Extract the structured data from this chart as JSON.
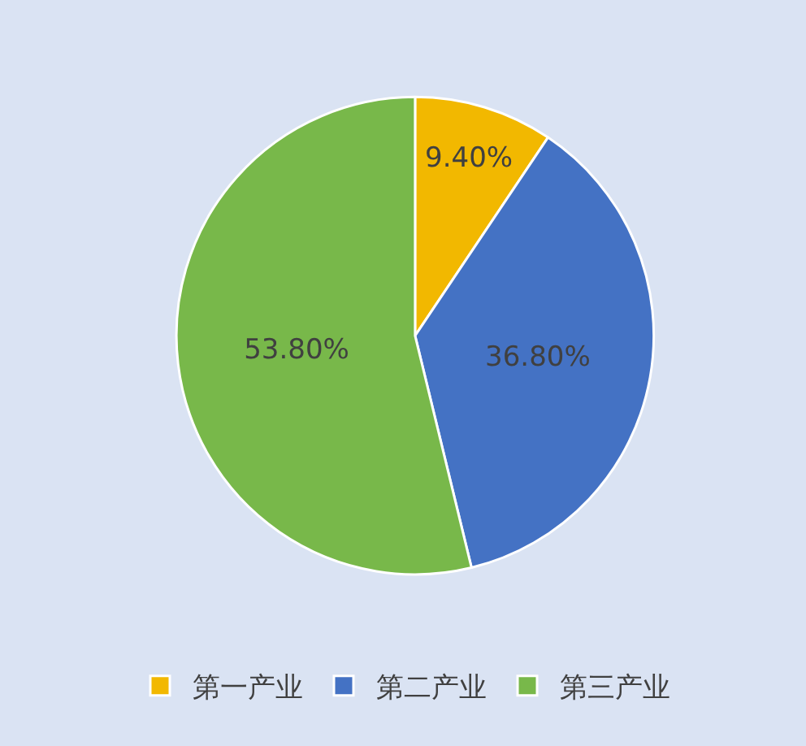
{
  "chart_data": {
    "type": "pie",
    "categories": [
      "第一产业",
      "第二产业",
      "第三产业"
    ],
    "values": [
      9.4,
      36.8,
      53.8
    ],
    "value_labels": [
      "9.40%",
      "36.80%",
      "53.80%"
    ],
    "colors": [
      "#f2b800",
      "#4472c4",
      "#78b84a"
    ],
    "legend": "bottom"
  }
}
